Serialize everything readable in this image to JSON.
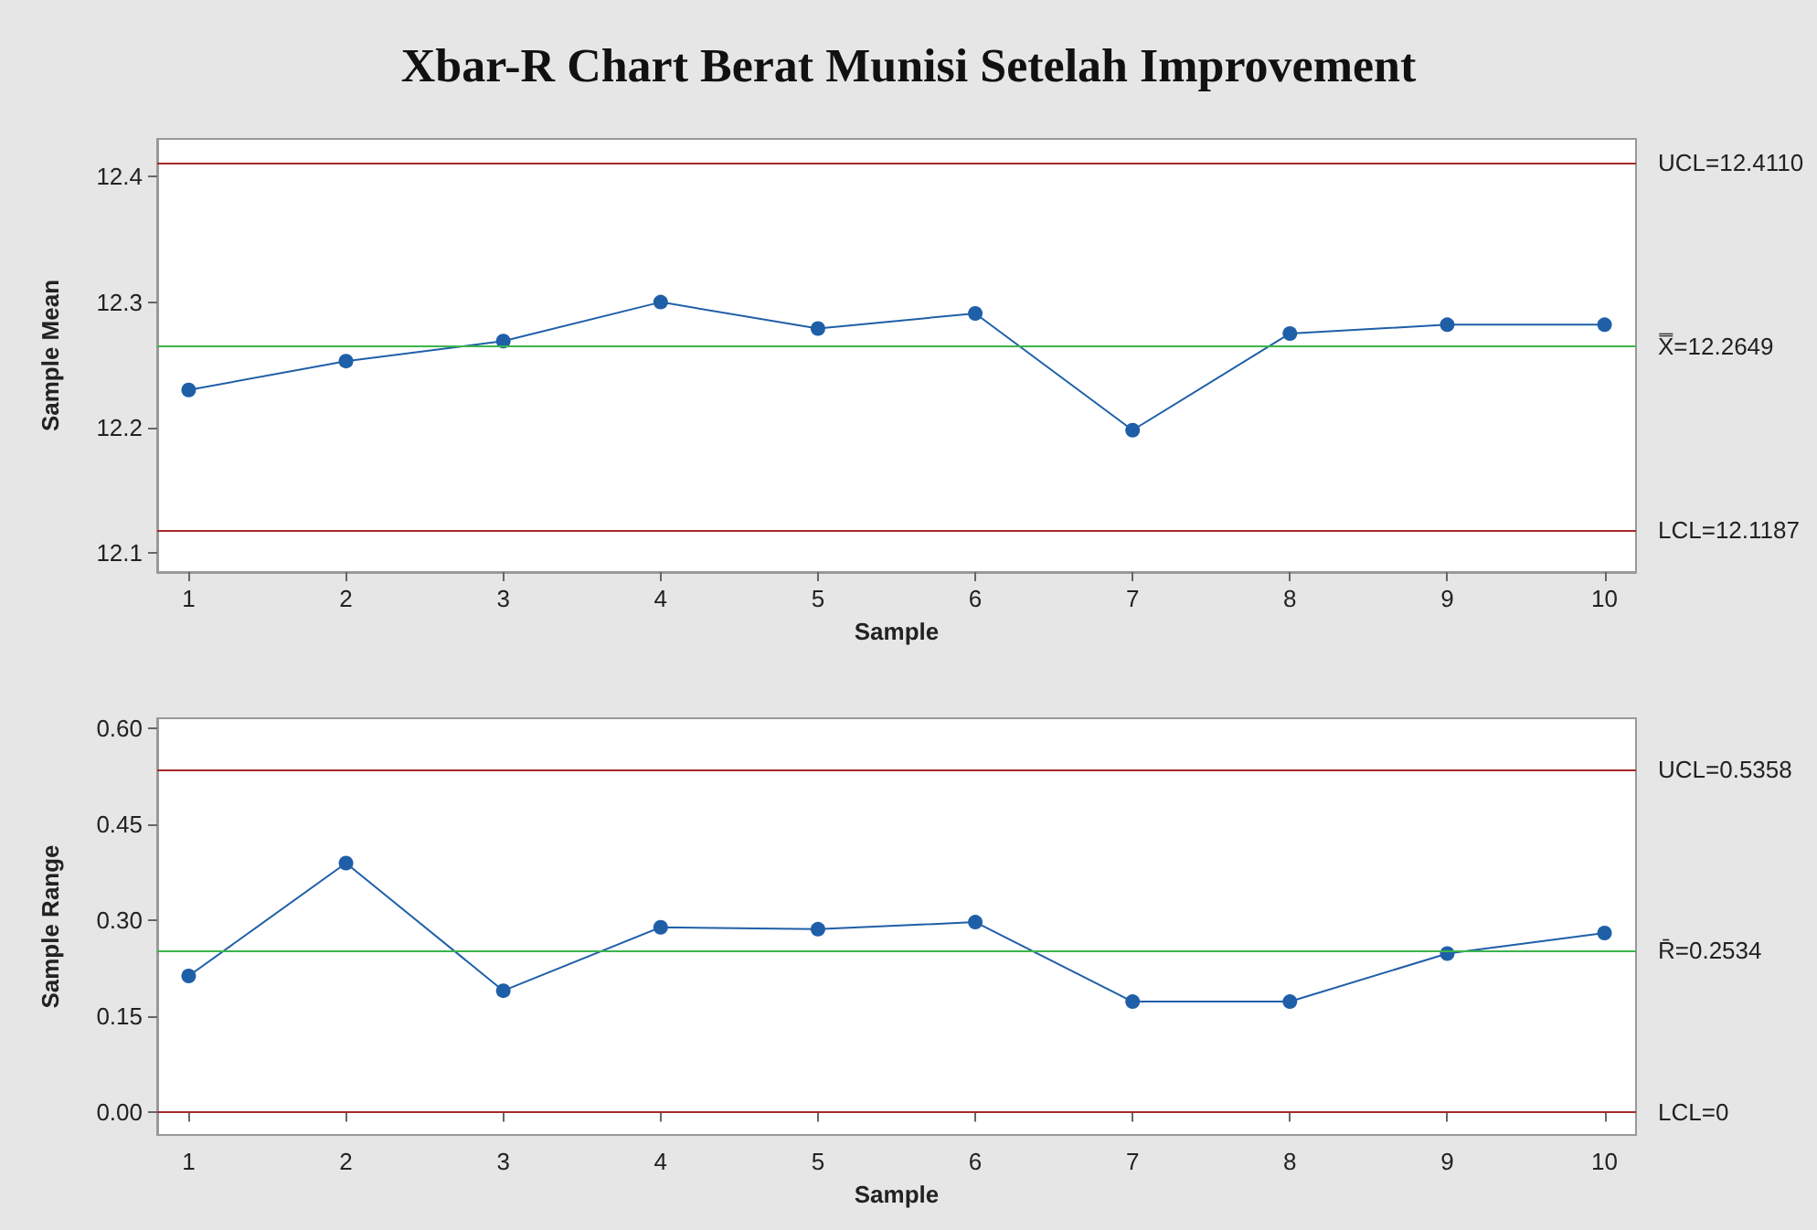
{
  "chart_data": [
    {
      "type": "line",
      "title": "Xbar-R Chart Berat Munisi Setelah Improvement",
      "xlabel": "Sample",
      "ylabel": "Sample Mean",
      "x": [
        1,
        2,
        3,
        4,
        5,
        6,
        7,
        8,
        9,
        10
      ],
      "series": [
        {
          "color": "#1f5fa8",
          "values": [
            12.23,
            12.253,
            12.269,
            12.3,
            12.279,
            12.291,
            12.198,
            12.275,
            12.282,
            12.282
          ]
        }
      ],
      "xlim": [
        0.8,
        10.2
      ],
      "xticks": [
        1,
        2,
        3,
        4,
        5,
        6,
        7,
        8,
        9,
        10
      ],
      "ylim": [
        12.085,
        12.43
      ],
      "yticks": [
        12.1,
        12.2,
        12.3,
        12.4
      ],
      "ref_lines": [
        {
          "axis": "y",
          "value": 12.411,
          "label": "UCL=12.4110",
          "color": "#a52a2a"
        },
        {
          "axis": "y",
          "value": 12.2649,
          "label": "X̿=12.2649",
          "color": "#3cb44b"
        },
        {
          "axis": "y",
          "value": 12.1187,
          "label": "LCL=12.1187",
          "color": "#a52a2a"
        }
      ],
      "marker": "circle",
      "line_style": "solid",
      "grid": false
    },
    {
      "type": "line",
      "xlabel": "Sample",
      "ylabel": "Sample Range",
      "x": [
        1,
        2,
        3,
        4,
        5,
        6,
        7,
        8,
        9,
        10
      ],
      "series": [
        {
          "color": "#1f5fa8",
          "values": [
            0.213,
            0.389,
            0.19,
            0.289,
            0.286,
            0.297,
            0.173,
            0.173,
            0.248,
            0.28
          ]
        }
      ],
      "xlim": [
        0.8,
        10.2
      ],
      "xticks": [
        1,
        2,
        3,
        4,
        5,
        6,
        7,
        8,
        9,
        10
      ],
      "ylim": [
        -0.035,
        0.615
      ],
      "yticks": [
        {
          "value": 0,
          "label": "0.00"
        },
        {
          "value": 0.15,
          "label": "0.15"
        },
        {
          "value": 0.3,
          "label": "0.30"
        },
        {
          "value": 0.45,
          "label": "0.45"
        },
        {
          "value": 0.6,
          "label": "0.60"
        }
      ],
      "ref_lines": [
        {
          "axis": "y",
          "value": 0.5358,
          "label": "UCL=0.5358",
          "color": "#a52a2a"
        },
        {
          "axis": "y",
          "value": 0.2534,
          "label": "R̄=0.2534",
          "color": "#3cb44b"
        },
        {
          "axis": "y",
          "value": 0,
          "label": "LCL=0",
          "color": "#a52a2a"
        }
      ],
      "marker": "circle",
      "line_style": "solid",
      "grid": false
    }
  ]
}
